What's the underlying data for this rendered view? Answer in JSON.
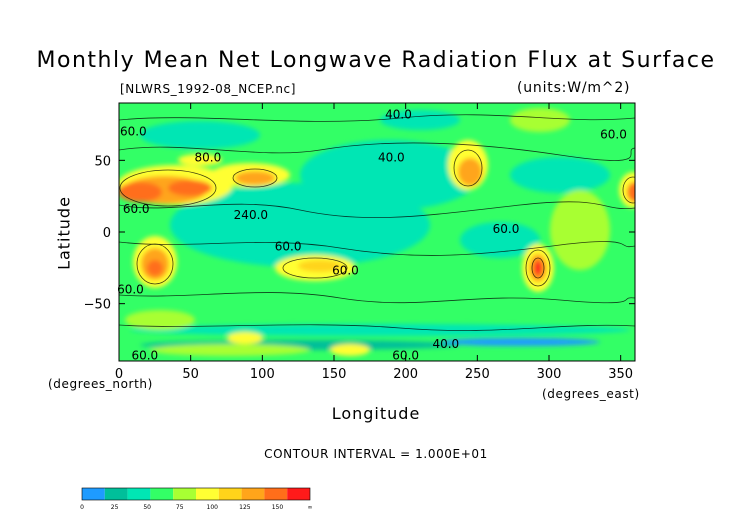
{
  "chart_data": {
    "type": "heatmap",
    "title": "Monthly Mean Net Longwave Radiation Flux at Surface",
    "subtitle_left": "[NLWRS_1992-08_NCEP.nc]",
    "subtitle_right": "(units:W/m^2)",
    "xlabel": "Longitude",
    "ylabel": "Latitude",
    "x_unit_left": "(degrees_north)",
    "x_unit_right": "(degrees_east)",
    "contour_interval_text": "CONTOUR INTERVAL = 1.000E+01",
    "xlim": [
      0,
      360
    ],
    "ylim": [
      -90,
      90
    ],
    "x_ticks": [
      0,
      50,
      100,
      150,
      200,
      250,
      300,
      350
    ],
    "y_ticks": [
      50,
      0,
      -50
    ],
    "y_tick_labels": [
      "50",
      "0",
      "−50"
    ],
    "contour_labels": [
      {
        "text": "40.0",
        "x": 195,
        "y": 82
      },
      {
        "text": "60.0",
        "x": 10,
        "y": 70
      },
      {
        "text": "60.0",
        "x": 345,
        "y": 68
      },
      {
        "text": "80.0",
        "x": 62,
        "y": 52
      },
      {
        "text": "40.0",
        "x": 190,
        "y": 52
      },
      {
        "text": "60.0",
        "x": 12,
        "y": 16
      },
      {
        "text": "240.0",
        "x": 92,
        "y": 12
      },
      {
        "text": "60.0",
        "x": 118,
        "y": -10
      },
      {
        "text": "60.0",
        "x": 270,
        "y": 2
      },
      {
        "text": "60.0",
        "x": 158,
        "y": -27
      },
      {
        "text": "60.0",
        "x": 8,
        "y": -40
      },
      {
        "text": "40.0",
        "x": 228,
        "y": -78
      },
      {
        "text": "60.0",
        "x": 18,
        "y": -86
      },
      {
        "text": "60.0",
        "x": 200,
        "y": -86
      }
    ],
    "colorbar": {
      "colors": [
        "#1e9bff",
        "#00bf9a",
        "#00e6b4",
        "#33ff66",
        "#a8ff33",
        "#ffff33",
        "#ffd41a",
        "#ffa51a",
        "#ff6e1a",
        "#ff1a1a"
      ],
      "tick_labels": [
        "0",
        "25",
        "50",
        "75",
        "100",
        "125",
        "150",
        "∞"
      ]
    }
  }
}
